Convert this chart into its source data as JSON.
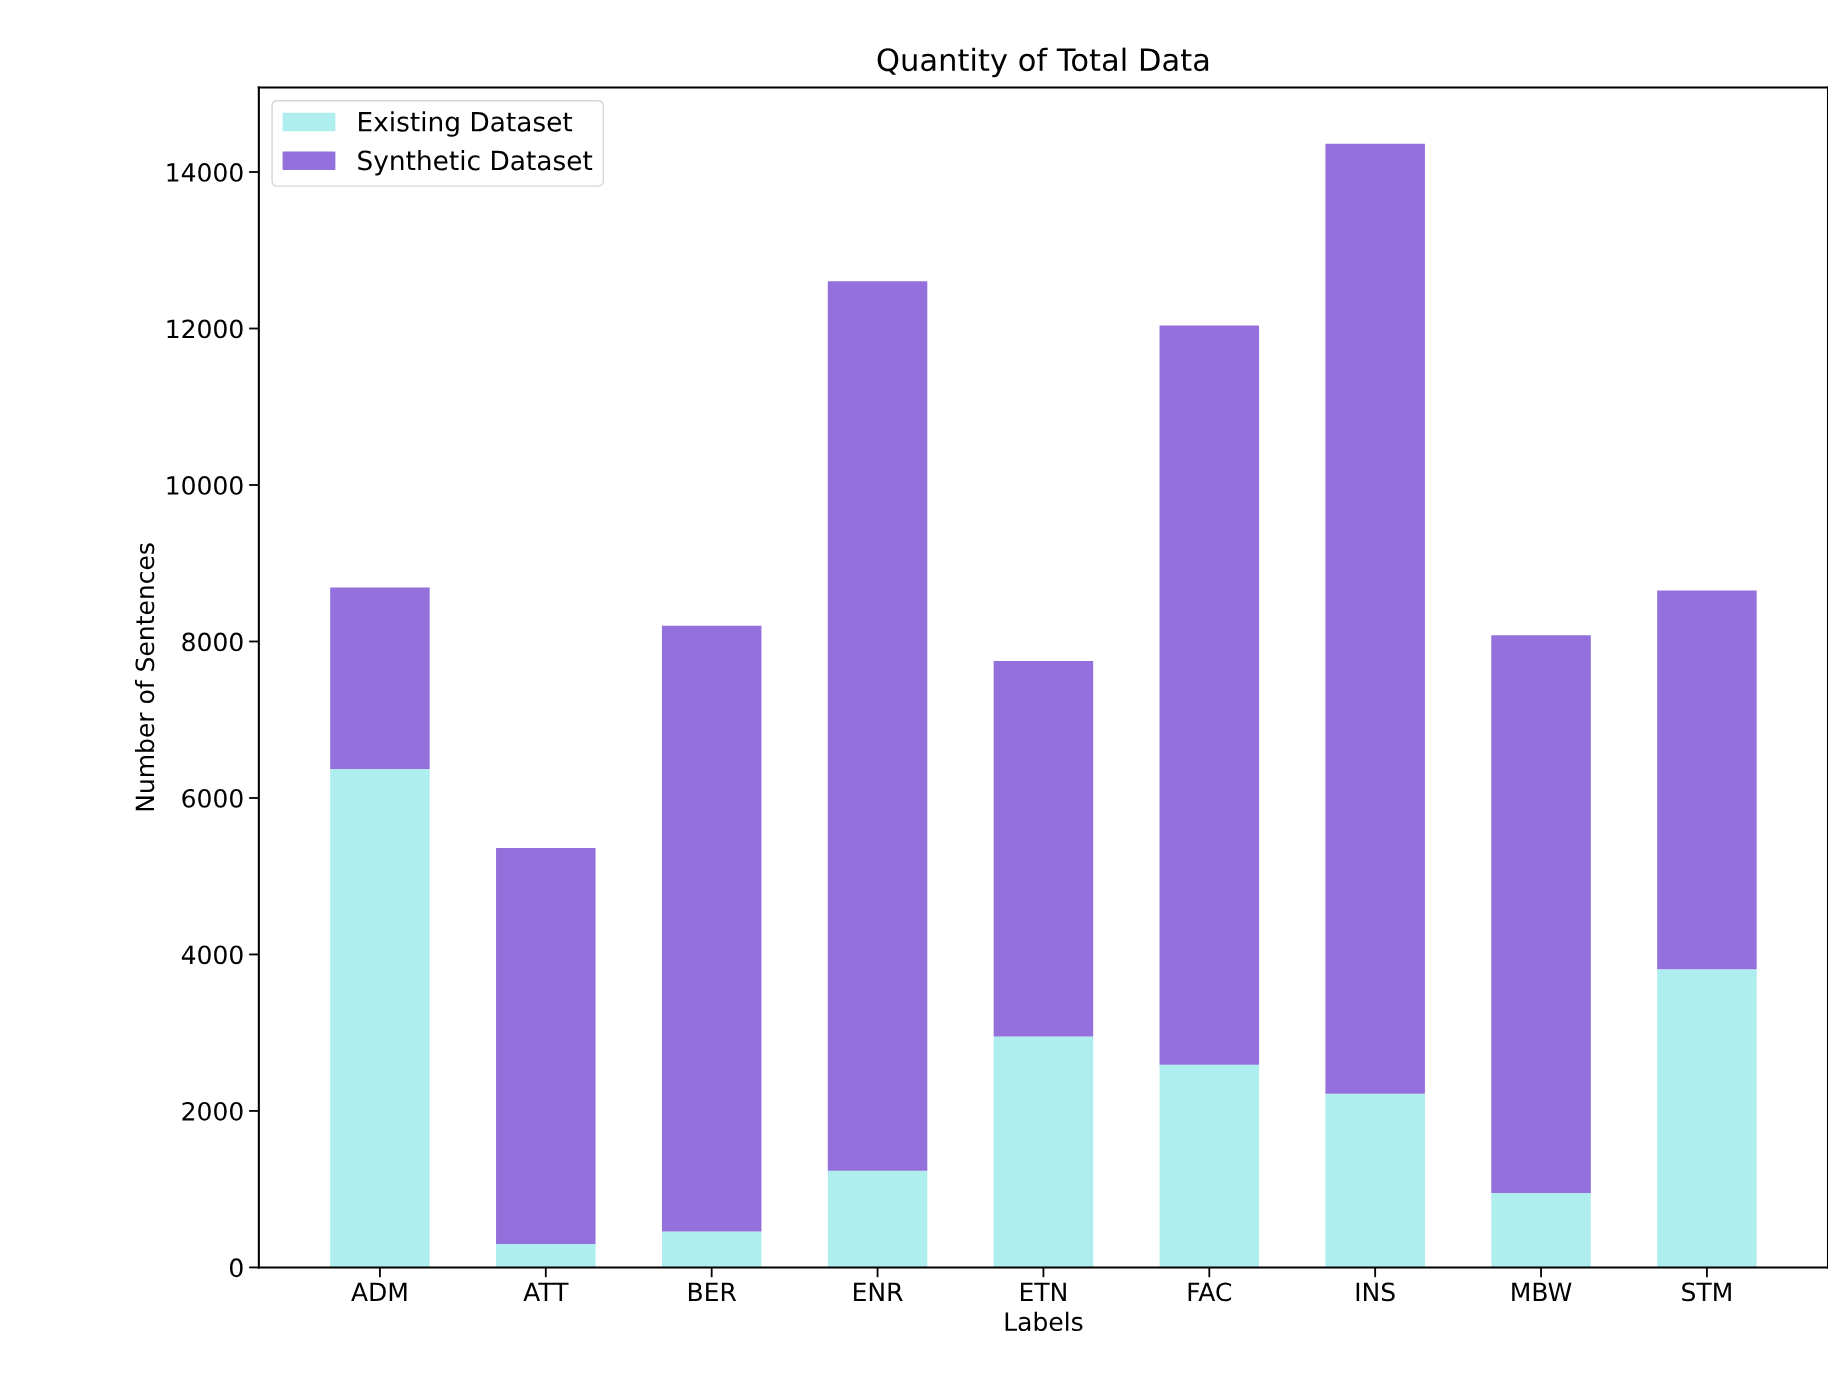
{
  "chart_data": {
    "type": "bar",
    "title": "Quantity of Total Data",
    "xlabel": "Labels",
    "ylabel": "Number of Sentences",
    "categories": [
      "ADM",
      "ATT",
      "BER",
      "ENR",
      "ETN",
      "FAC",
      "INS",
      "MBW",
      "STM"
    ],
    "series": [
      {
        "name": "Existing Dataset",
        "color": "#afeeee",
        "values": [
          6370,
          300,
          460,
          1235,
          2950,
          2590,
          2220,
          950,
          3810
        ]
      },
      {
        "name": "Synthetic Dataset",
        "color": "#9370db",
        "values": [
          2320,
          5060,
          7740,
          11370,
          4800,
          9450,
          12140,
          7130,
          4840
        ]
      }
    ],
    "stacked": true,
    "ylim": [
      0,
      15080
    ],
    "yticks": [
      0,
      2000,
      4000,
      6000,
      8000,
      10000,
      12000,
      14000
    ],
    "grid": false,
    "legend": "top left"
  }
}
